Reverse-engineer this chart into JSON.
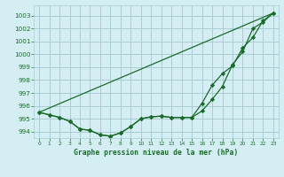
{
  "title": "Graphe pression niveau de la mer (hPa)",
  "bg_color": "#d4eef4",
  "grid_color": "#aaccd4",
  "line_color": "#1a6b2a",
  "xlim": [
    -0.5,
    23.5
  ],
  "ylim": [
    993.5,
    1003.8
  ],
  "yticks": [
    994,
    995,
    996,
    997,
    998,
    999,
    1000,
    1001,
    1002,
    1003
  ],
  "xticks": [
    0,
    1,
    2,
    3,
    4,
    5,
    6,
    7,
    8,
    9,
    10,
    11,
    12,
    13,
    14,
    15,
    16,
    17,
    18,
    19,
    20,
    21,
    22,
    23
  ],
  "series1_x": [
    0,
    1,
    2,
    3,
    4,
    5,
    6,
    7,
    8,
    9,
    10,
    11,
    12,
    13,
    14,
    15,
    16,
    17,
    18,
    19,
    20,
    21,
    22,
    23
  ],
  "series1_y": [
    995.5,
    995.3,
    995.1,
    994.8,
    994.2,
    994.1,
    993.75,
    993.65,
    993.9,
    994.4,
    995.0,
    995.15,
    995.2,
    995.1,
    995.1,
    995.1,
    995.6,
    996.5,
    997.5,
    999.2,
    1000.2,
    1002.0,
    1002.5,
    1003.2
  ],
  "series2_x": [
    0,
    1,
    2,
    3,
    4,
    5,
    6,
    7,
    8,
    9,
    10,
    11,
    12,
    13,
    14,
    15,
    16,
    17,
    18,
    19,
    20,
    21,
    22,
    23
  ],
  "series2_y": [
    995.5,
    995.3,
    995.1,
    994.8,
    994.2,
    994.1,
    993.75,
    993.65,
    993.9,
    994.4,
    995.0,
    995.15,
    995.2,
    995.1,
    995.1,
    995.1,
    996.2,
    997.6,
    998.5,
    999.1,
    1000.5,
    1001.3,
    1002.6,
    1003.2
  ],
  "series3_x": [
    0,
    23
  ],
  "series3_y": [
    995.5,
    1003.2
  ]
}
